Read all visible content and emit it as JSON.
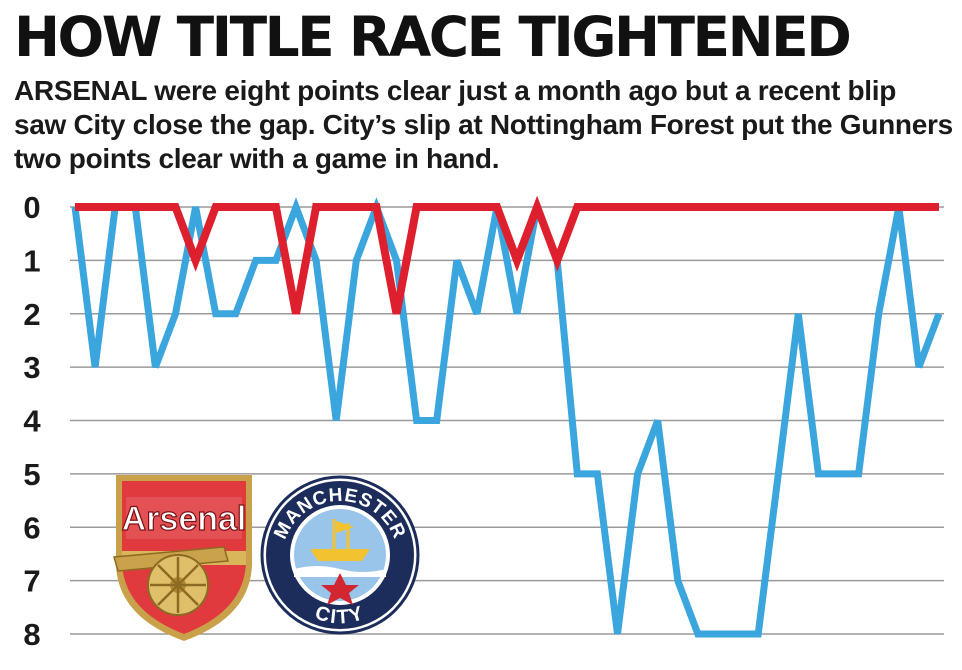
{
  "title": "HOW TITLE RACE TIGHTENED",
  "subtitle": {
    "lead": "ARSENAL",
    "text": " were eight points clear just a month ago but a recent blip saw City close the gap. City’s slip at Nottingham Forest put the Gunners two points clear with a game in hand."
  },
  "logos": {
    "arsenal": {
      "text": "Arsenal",
      "icon": "arsenal-crest-icon"
    },
    "city": {
      "text_top": "MANCHESTER",
      "text_bottom": "CITY",
      "icon": "manchester-city-crest-icon"
    }
  },
  "colors": {
    "arsenal": "#dd1f2e",
    "city": "#3ba5de",
    "grid": "#9a9a9a"
  },
  "chart_data": {
    "type": "line",
    "title": "HOW TITLE RACE TIGHTENED",
    "xlabel": "",
    "ylabel": "",
    "ylim": [
      0,
      8
    ],
    "y_inverted": true,
    "y_ticks": [
      0,
      1,
      2,
      3,
      4,
      5,
      6,
      7,
      8
    ],
    "grid": true,
    "series": [
      {
        "name": "Arsenal",
        "color": "#dd1f2e",
        "values": [
          0,
          0,
          0,
          0,
          0,
          0,
          1,
          0,
          0,
          0,
          0,
          2,
          0,
          0,
          0,
          0,
          2,
          0,
          0,
          0,
          0,
          0,
          1,
          0,
          1,
          0,
          0,
          0,
          0,
          0,
          0,
          0,
          0,
          0,
          0,
          0,
          0,
          0,
          0,
          0,
          0,
          0,
          0,
          0
        ]
      },
      {
        "name": "Manchester City",
        "color": "#3ba5de",
        "values": [
          0,
          3,
          0,
          0,
          3,
          2,
          0,
          2,
          2,
          1,
          1,
          0,
          1,
          4,
          1,
          0,
          1,
          4,
          4,
          1,
          2,
          0,
          2,
          0,
          1,
          5,
          5,
          8,
          5,
          4,
          7,
          8,
          8,
          8,
          8,
          5,
          2,
          5,
          5,
          5,
          2,
          0,
          3,
          2
        ]
      }
    ]
  }
}
